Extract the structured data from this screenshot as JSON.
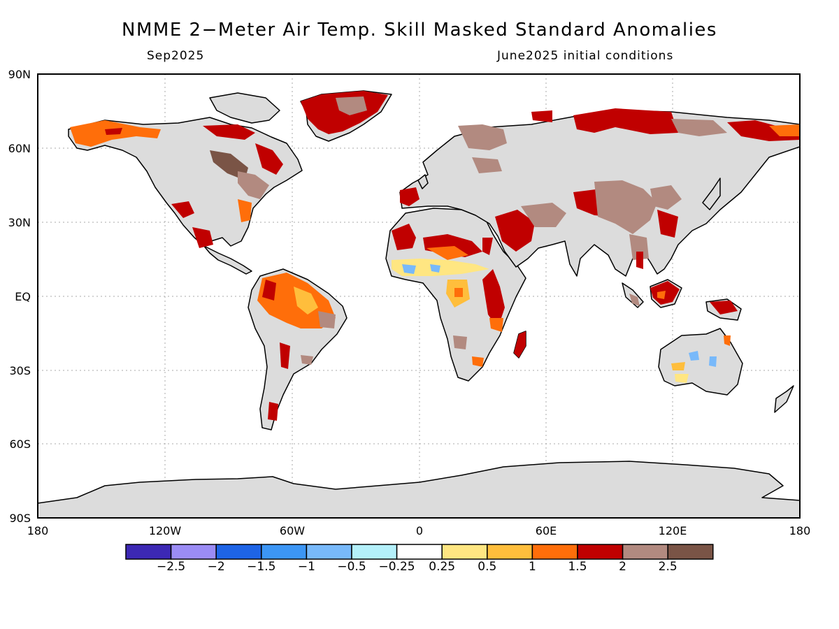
{
  "title": "NMME 2−Meter Air Temp. Skill Masked Standard Anomalies",
  "subtitle_left": "Sep2025",
  "subtitle_right": "June2025 initial conditions",
  "axes": {
    "y_ticks": [
      "90N",
      "60N",
      "30N",
      "EQ",
      "30S",
      "60S",
      "90S"
    ],
    "x_ticks": [
      "180",
      "120W",
      "60W",
      "0",
      "60E",
      "120E",
      "180"
    ]
  },
  "colorbar": {
    "colors": [
      "#3c28b4",
      "#9b8cf5",
      "#1e64e6",
      "#3c96f5",
      "#78b9fa",
      "#b4f0fa",
      "#ffffff",
      "#ffe682",
      "#ffbe3c",
      "#ff6e0a",
      "#c00000",
      "#b28a80",
      "#7a5446"
    ],
    "labels": [
      "−2.5",
      "−2",
      "−1.5",
      "−1",
      "−0.5",
      "−0.25",
      "0.25",
      "0.5",
      "1",
      "1.5",
      "2",
      "2.5"
    ]
  },
  "colors": {
    "land_masked": "#dcdcdc",
    "warm_1": "#ffbe3c",
    "warm_15": "#ff6e0a",
    "warm_2": "#c00000",
    "warm_25": "#b28a80",
    "warm_3": "#7a5446",
    "cool_05": "#78b9fa",
    "cool_025": "#b4f0fa",
    "pale_yellow": "#ffe682"
  }
}
